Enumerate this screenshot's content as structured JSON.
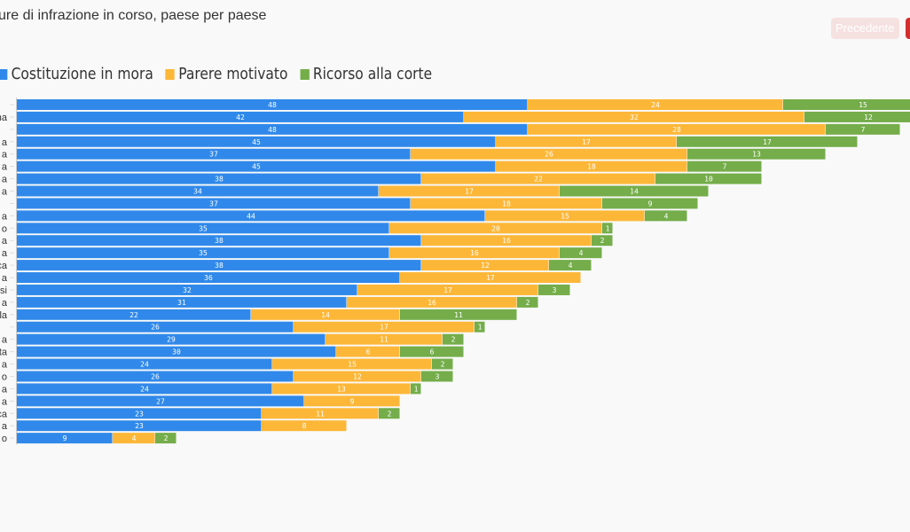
{
  "header": {
    "title": "ure di infrazione in corso, paese per paese",
    "prev_label": "Precedente",
    "next_label": ""
  },
  "colors": {
    "mora": "#3089ea",
    "parere": "#fdb738",
    "ricorso": "#74ad4a"
  },
  "chart_data": {
    "type": "bar",
    "orientation": "horizontal",
    "stacked": true,
    "title": "ure di infrazione in corso, paese per paese",
    "legend_position": "top-left",
    "categories": [
      "",
      "na",
      "",
      "a",
      "a",
      "a",
      "a",
      "a",
      "",
      "a",
      "o",
      "a",
      "a",
      "ca",
      "a",
      "si",
      "a",
      "la",
      "",
      "a",
      "ta",
      "a",
      "o",
      "a",
      "a",
      "ca",
      "a",
      "o"
    ],
    "series": [
      {
        "name": "Costituzione in mora",
        "values": [
          48,
          42,
          48,
          45,
          37,
          45,
          38,
          34,
          37,
          44,
          35,
          38,
          35,
          38,
          36,
          32,
          31,
          22,
          26,
          29,
          30,
          24,
          26,
          24,
          27,
          23,
          23,
          9
        ]
      },
      {
        "name": "Parere motivato",
        "values": [
          24,
          32,
          28,
          17,
          26,
          18,
          22,
          17,
          18,
          15,
          20,
          16,
          16,
          12,
          17,
          17,
          16,
          14,
          17,
          11,
          6,
          15,
          12,
          13,
          9,
          11,
          8,
          4
        ]
      },
      {
        "name": "Ricorso alla corte",
        "values": [
          15,
          12,
          7,
          17,
          13,
          7,
          10,
          14,
          9,
          4,
          1,
          2,
          4,
          4,
          0,
          3,
          2,
          11,
          1,
          2,
          6,
          2,
          3,
          1,
          0,
          2,
          0,
          2
        ]
      }
    ]
  }
}
